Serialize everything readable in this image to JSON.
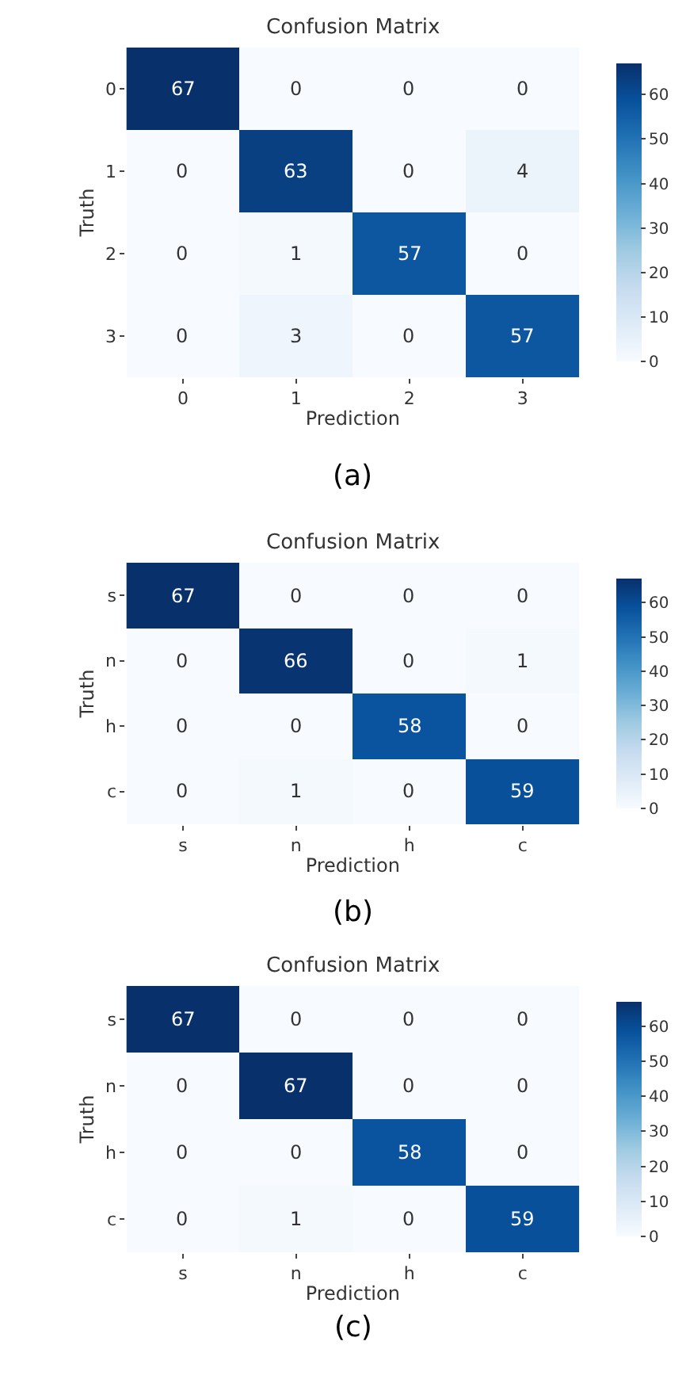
{
  "chart_data": [
    {
      "type": "heatmap",
      "title": "Confusion Matrix",
      "xlabel": "Prediction",
      "ylabel": "Truth",
      "categories": [
        "0",
        "1",
        "2",
        "3"
      ],
      "y_categories": [
        "0",
        "1",
        "2",
        "3"
      ],
      "cells": [
        [
          67,
          0,
          0,
          0
        ],
        [
          0,
          63,
          0,
          4
        ],
        [
          0,
          1,
          57,
          0
        ],
        [
          0,
          3,
          0,
          57
        ]
      ],
      "clim": [
        0,
        67
      ],
      "cticks": [
        0,
        10,
        20,
        30,
        40,
        50,
        60
      ],
      "data_labels": true,
      "annotations": [
        "(a)"
      ]
    },
    {
      "type": "heatmap",
      "title": "Confusion Matrix",
      "xlabel": "Prediction",
      "ylabel": "Truth",
      "categories": [
        "s",
        "n",
        "h",
        "c"
      ],
      "y_categories": [
        "s",
        "n",
        "h",
        "c"
      ],
      "cells": [
        [
          67,
          0,
          0,
          0
        ],
        [
          0,
          66,
          0,
          1
        ],
        [
          0,
          0,
          58,
          0
        ],
        [
          0,
          1,
          0,
          59
        ]
      ],
      "clim": [
        0,
        67
      ],
      "cticks": [
        0,
        10,
        20,
        30,
        40,
        50,
        60
      ],
      "data_labels": true,
      "annotations": [
        "(b)"
      ]
    },
    {
      "type": "heatmap",
      "title": "Confusion Matrix",
      "xlabel": "Prediction",
      "ylabel": "Truth",
      "categories": [
        "s",
        "n",
        "h",
        "c"
      ],
      "y_categories": [
        "s",
        "n",
        "h",
        "c"
      ],
      "cells": [
        [
          67,
          0,
          0,
          0
        ],
        [
          0,
          67,
          0,
          0
        ],
        [
          0,
          0,
          58,
          0
        ],
        [
          0,
          1,
          0,
          59
        ]
      ],
      "clim": [
        0,
        67
      ],
      "cticks": [
        0,
        10,
        20,
        30,
        40,
        50,
        60
      ],
      "data_labels": true,
      "annotations": [
        "(c)"
      ]
    }
  ]
}
